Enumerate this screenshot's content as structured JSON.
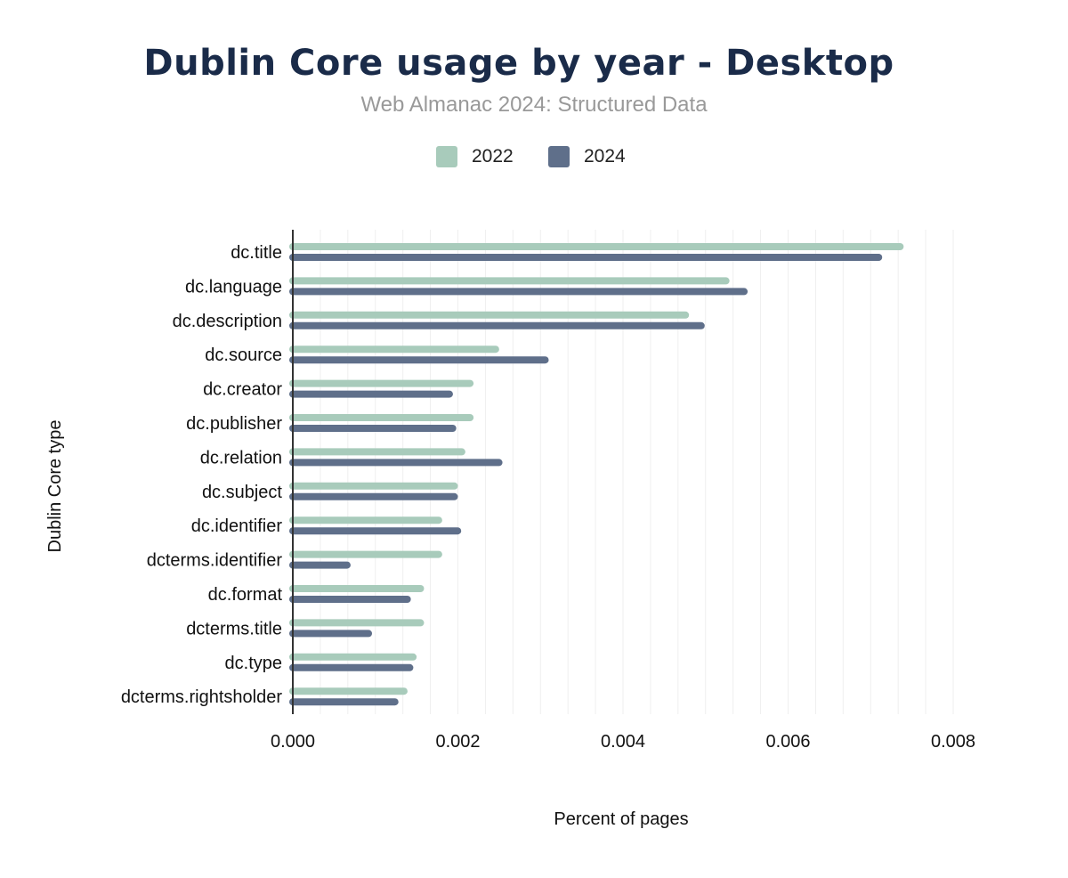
{
  "chart_data": {
    "type": "bar",
    "orientation": "horizontal",
    "title": "Dublin Core usage by year - Desktop",
    "subtitle": "Web Almanac 2024: Structured Data",
    "xlabel": "Percent of pages",
    "ylabel": "Dublin Core type",
    "xlim": [
      0,
      0.0088
    ],
    "xticks": [
      "0.000",
      "0.002",
      "0.004",
      "0.006",
      "0.008"
    ],
    "grid": true,
    "legend_position": "top",
    "categories": [
      "dc.title",
      "dc.language",
      "dc.description",
      "dc.source",
      "dc.creator",
      "dc.publisher",
      "dc.relation",
      "dc.subject",
      "dc.identifier",
      "dcterms.identifier",
      "dc.format",
      "dcterms.title",
      "dc.type",
      "dcterms.rightsholder"
    ],
    "series": [
      {
        "name": "2022",
        "color": "#a8cbbb",
        "values": [
          0.0074,
          0.00529,
          0.0048,
          0.0025,
          0.00219,
          0.00219,
          0.00209,
          0.002,
          0.00181,
          0.00181,
          0.00159,
          0.00159,
          0.0015,
          0.00139
        ]
      },
      {
        "name": "2024",
        "color": "#5f6f8a",
        "values": [
          0.00714,
          0.00551,
          0.00499,
          0.0031,
          0.00194,
          0.00198,
          0.00254,
          0.002,
          0.00204,
          0.0007,
          0.00143,
          0.00096,
          0.00146,
          0.00128
        ]
      }
    ]
  }
}
